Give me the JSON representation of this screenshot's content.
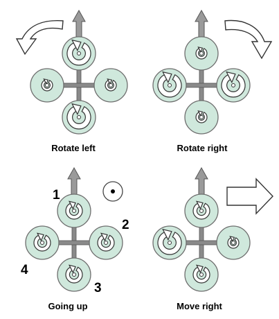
{
  "colors": {
    "rotor_fill": "#cfe8dc",
    "rotor_stroke": "#6d6d6d",
    "frame": "#8a8a8a",
    "arrow": "#9a9a9a",
    "ink": "#000000"
  },
  "panels": [
    {
      "id": "rotate-left",
      "caption": "Rotate left",
      "rotors": [
        {
          "pos": "front",
          "spin": "large"
        },
        {
          "pos": "right",
          "spin": "small"
        },
        {
          "pos": "back",
          "spin": "large"
        },
        {
          "pos": "left",
          "spin": "small"
        }
      ],
      "indicator": "curved-arrow-left"
    },
    {
      "id": "rotate-right",
      "caption": "Rotate right",
      "rotors": [
        {
          "pos": "front",
          "spin": "small"
        },
        {
          "pos": "right",
          "spin": "large"
        },
        {
          "pos": "back",
          "spin": "small"
        },
        {
          "pos": "left",
          "spin": "large"
        }
      ],
      "indicator": "curved-arrow-right"
    },
    {
      "id": "going-up",
      "caption": "Going up",
      "rotors": [
        {
          "pos": "front",
          "spin": "medium"
        },
        {
          "pos": "right",
          "spin": "medium"
        },
        {
          "pos": "back",
          "spin": "medium"
        },
        {
          "pos": "left",
          "spin": "medium"
        }
      ],
      "rotor_numbers": [
        "1",
        "2",
        "3",
        "4"
      ],
      "indicator": "out-of-plane-dot"
    },
    {
      "id": "move-right",
      "caption": "Move right",
      "rotors": [
        {
          "pos": "front",
          "spin": "medium"
        },
        {
          "pos": "right",
          "spin": "small"
        },
        {
          "pos": "back",
          "spin": "medium"
        },
        {
          "pos": "left",
          "spin": "large"
        }
      ],
      "indicator": "straight-arrow-right"
    }
  ]
}
